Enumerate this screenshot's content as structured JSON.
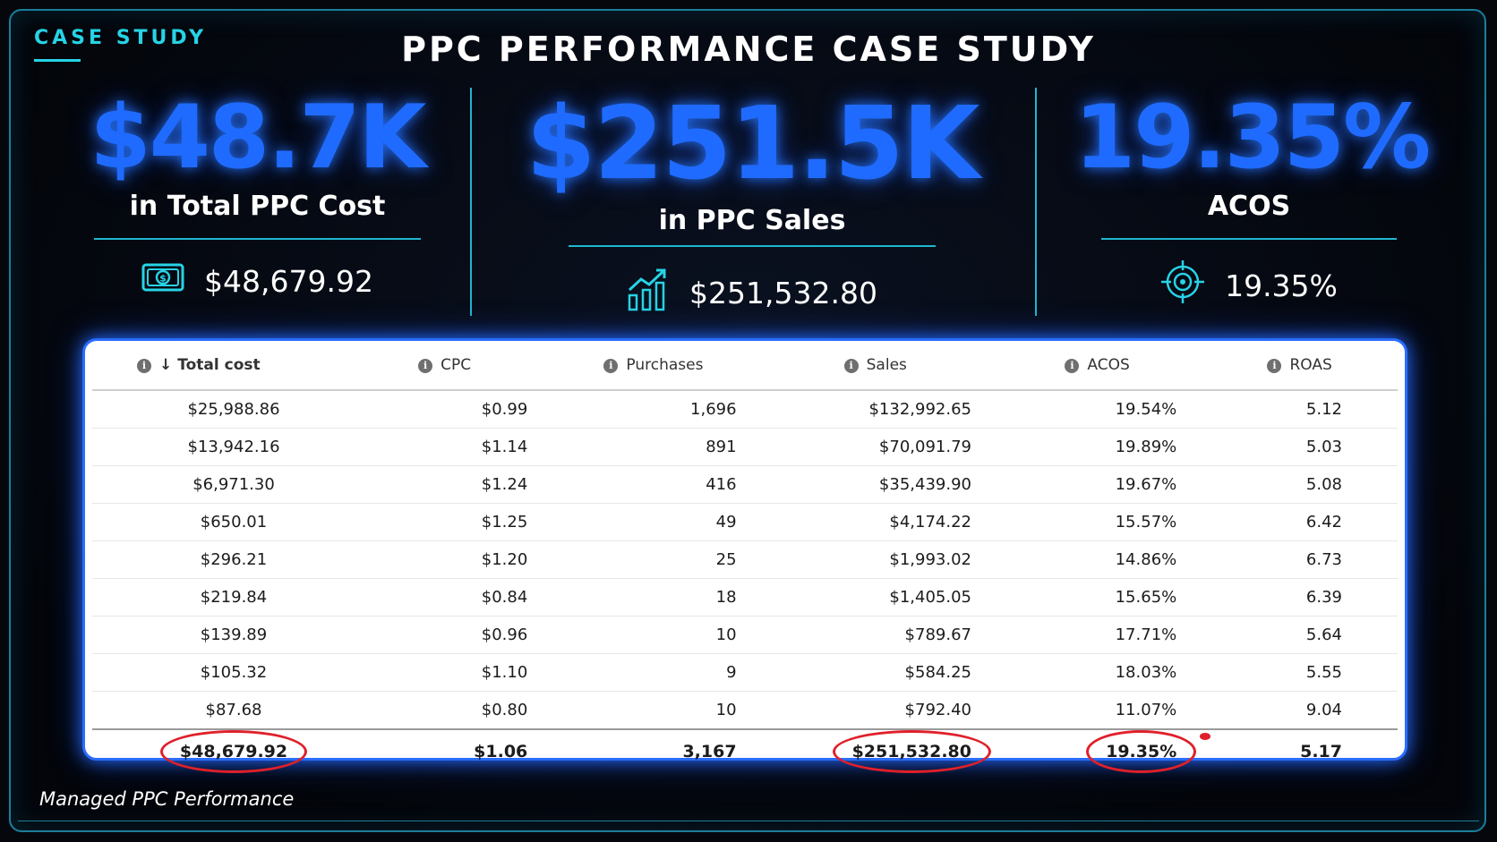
{
  "header": {
    "tag": "CASE STUDY",
    "title": "PPC PERFORMANCE CASE STUDY"
  },
  "kpis": [
    {
      "big": "$48.7K",
      "label": "in Total PPC Cost",
      "value": "$48,679.92",
      "icon": "money-icon"
    },
    {
      "big": "$251.5K",
      "label": "in PPC Sales",
      "value": "$251,532.80",
      "icon": "growth-chart-icon"
    },
    {
      "big": "19.35%",
      "label": "ACOS",
      "value": "19.35%",
      "icon": "target-icon"
    }
  ],
  "table": {
    "columns": [
      "Total cost",
      "CPC",
      "Purchases",
      "Sales",
      "ACOS",
      "ROAS"
    ],
    "sort_column": "Total cost",
    "sort_direction": "descending",
    "rows": [
      [
        "$25,988.86",
        "$0.99",
        "1,696",
        "$132,992.65",
        "19.54%",
        "5.12"
      ],
      [
        "$13,942.16",
        "$1.14",
        "891",
        "$70,091.79",
        "19.89%",
        "5.03"
      ],
      [
        "$6,971.30",
        "$1.24",
        "416",
        "$35,439.90",
        "19.67%",
        "5.08"
      ],
      [
        "$650.01",
        "$1.25",
        "49",
        "$4,174.22",
        "15.57%",
        "6.42"
      ],
      [
        "$296.21",
        "$1.20",
        "25",
        "$1,993.02",
        "14.86%",
        "6.73"
      ],
      [
        "$219.84",
        "$0.84",
        "18",
        "$1,405.05",
        "15.65%",
        "6.39"
      ],
      [
        "$139.89",
        "$0.96",
        "10",
        "$789.67",
        "17.71%",
        "5.64"
      ],
      [
        "$105.32",
        "$1.10",
        "9",
        "$584.25",
        "18.03%",
        "5.55"
      ],
      [
        "$87.68",
        "$0.80",
        "10",
        "$792.40",
        "11.07%",
        "9.04"
      ]
    ],
    "total": [
      "$48,679.92",
      "$1.06",
      "3,167",
      "$251,532.80",
      "19.35%",
      "5.17"
    ],
    "highlighted_totals": [
      "Total cost",
      "Sales",
      "ACOS"
    ]
  },
  "footer": {
    "caption": "Managed PPC Performance"
  },
  "colors": {
    "accent": "#27d3e6",
    "kpi_blue": "#1f6bff",
    "highlight_red": "#e0202a",
    "background": "#05070d"
  }
}
